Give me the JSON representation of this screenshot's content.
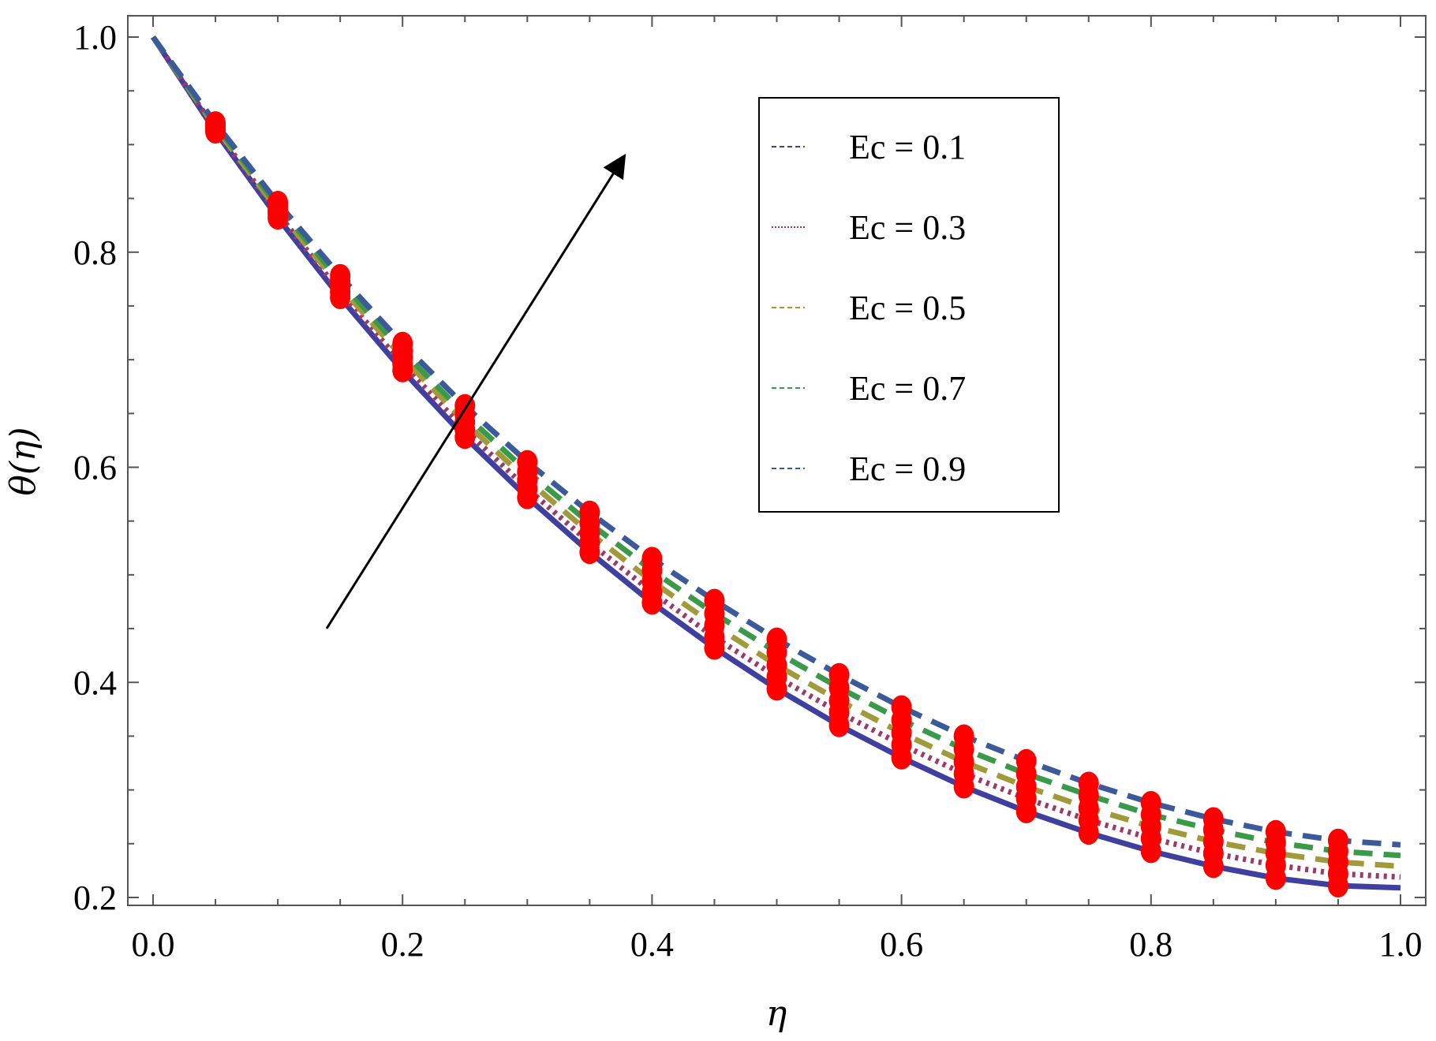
{
  "chart_data": {
    "type": "line",
    "title": "",
    "xlabel": "η",
    "ylabel": "θ(η)",
    "xlim": [
      0.0,
      1.0
    ],
    "ylim": [
      0.2,
      1.0
    ],
    "x_ticks": [
      "0.0",
      "0.2",
      "0.4",
      "0.6",
      "0.8",
      "1.0"
    ],
    "y_ticks": [
      "0.2",
      "0.4",
      "0.6",
      "0.8",
      "1.0"
    ],
    "grid": false,
    "legend_position": "top-right",
    "annotation": "arrow indicating increasing Ec",
    "x": [
      0.0,
      0.05,
      0.1,
      0.15,
      0.2,
      0.25,
      0.3,
      0.35,
      0.4,
      0.45,
      0.5,
      0.55,
      0.6,
      0.65,
      0.7,
      0.75,
      0.8,
      0.85,
      0.9,
      0.95,
      1.0
    ],
    "series": [
      {
        "name": "Ec = 0.1",
        "color": "#3f3fa0",
        "dash": "solid",
        "values": [
          1.0,
          0.912,
          0.832,
          0.758,
          0.69,
          0.628,
          0.572,
          0.521,
          0.474,
          0.432,
          0.394,
          0.36,
          0.33,
          0.303,
          0.28,
          0.26,
          0.243,
          0.229,
          0.218,
          0.211,
          0.209
        ]
      },
      {
        "name": "Ec = 0.3",
        "color": "#9a3a6a",
        "dash": "dotted",
        "values": [
          1.0,
          0.914,
          0.836,
          0.763,
          0.696,
          0.635,
          0.58,
          0.53,
          0.484,
          0.442,
          0.405,
          0.372,
          0.342,
          0.315,
          0.292,
          0.272,
          0.255,
          0.241,
          0.23,
          0.222,
          0.219
        ]
      },
      {
        "name": "Ec = 0.5",
        "color": "#a09a3a",
        "dash": "dashed",
        "values": [
          1.0,
          0.916,
          0.839,
          0.768,
          0.702,
          0.642,
          0.588,
          0.539,
          0.494,
          0.453,
          0.416,
          0.383,
          0.353,
          0.326,
          0.303,
          0.283,
          0.266,
          0.252,
          0.241,
          0.233,
          0.229
        ]
      },
      {
        "name": "Ec = 0.7",
        "color": "#3a9a4a",
        "dash": "dashed",
        "values": [
          1.0,
          0.918,
          0.843,
          0.773,
          0.708,
          0.649,
          0.596,
          0.548,
          0.504,
          0.464,
          0.428,
          0.395,
          0.365,
          0.338,
          0.315,
          0.295,
          0.277,
          0.263,
          0.251,
          0.243,
          0.239
        ]
      },
      {
        "name": "Ec = 0.9",
        "color": "#3a5a9a",
        "dash": "dashed",
        "values": [
          1.0,
          0.92,
          0.846,
          0.778,
          0.715,
          0.657,
          0.605,
          0.558,
          0.515,
          0.476,
          0.44,
          0.407,
          0.377,
          0.35,
          0.327,
          0.306,
          0.288,
          0.273,
          0.261,
          0.253,
          0.249
        ]
      }
    ],
    "marker_color": "#ff0000",
    "marker_x": [
      0.05,
      0.1,
      0.15,
      0.2,
      0.25,
      0.3,
      0.35,
      0.4,
      0.45,
      0.5,
      0.55,
      0.6,
      0.65,
      0.7,
      0.75,
      0.8,
      0.85,
      0.9,
      0.95
    ]
  }
}
